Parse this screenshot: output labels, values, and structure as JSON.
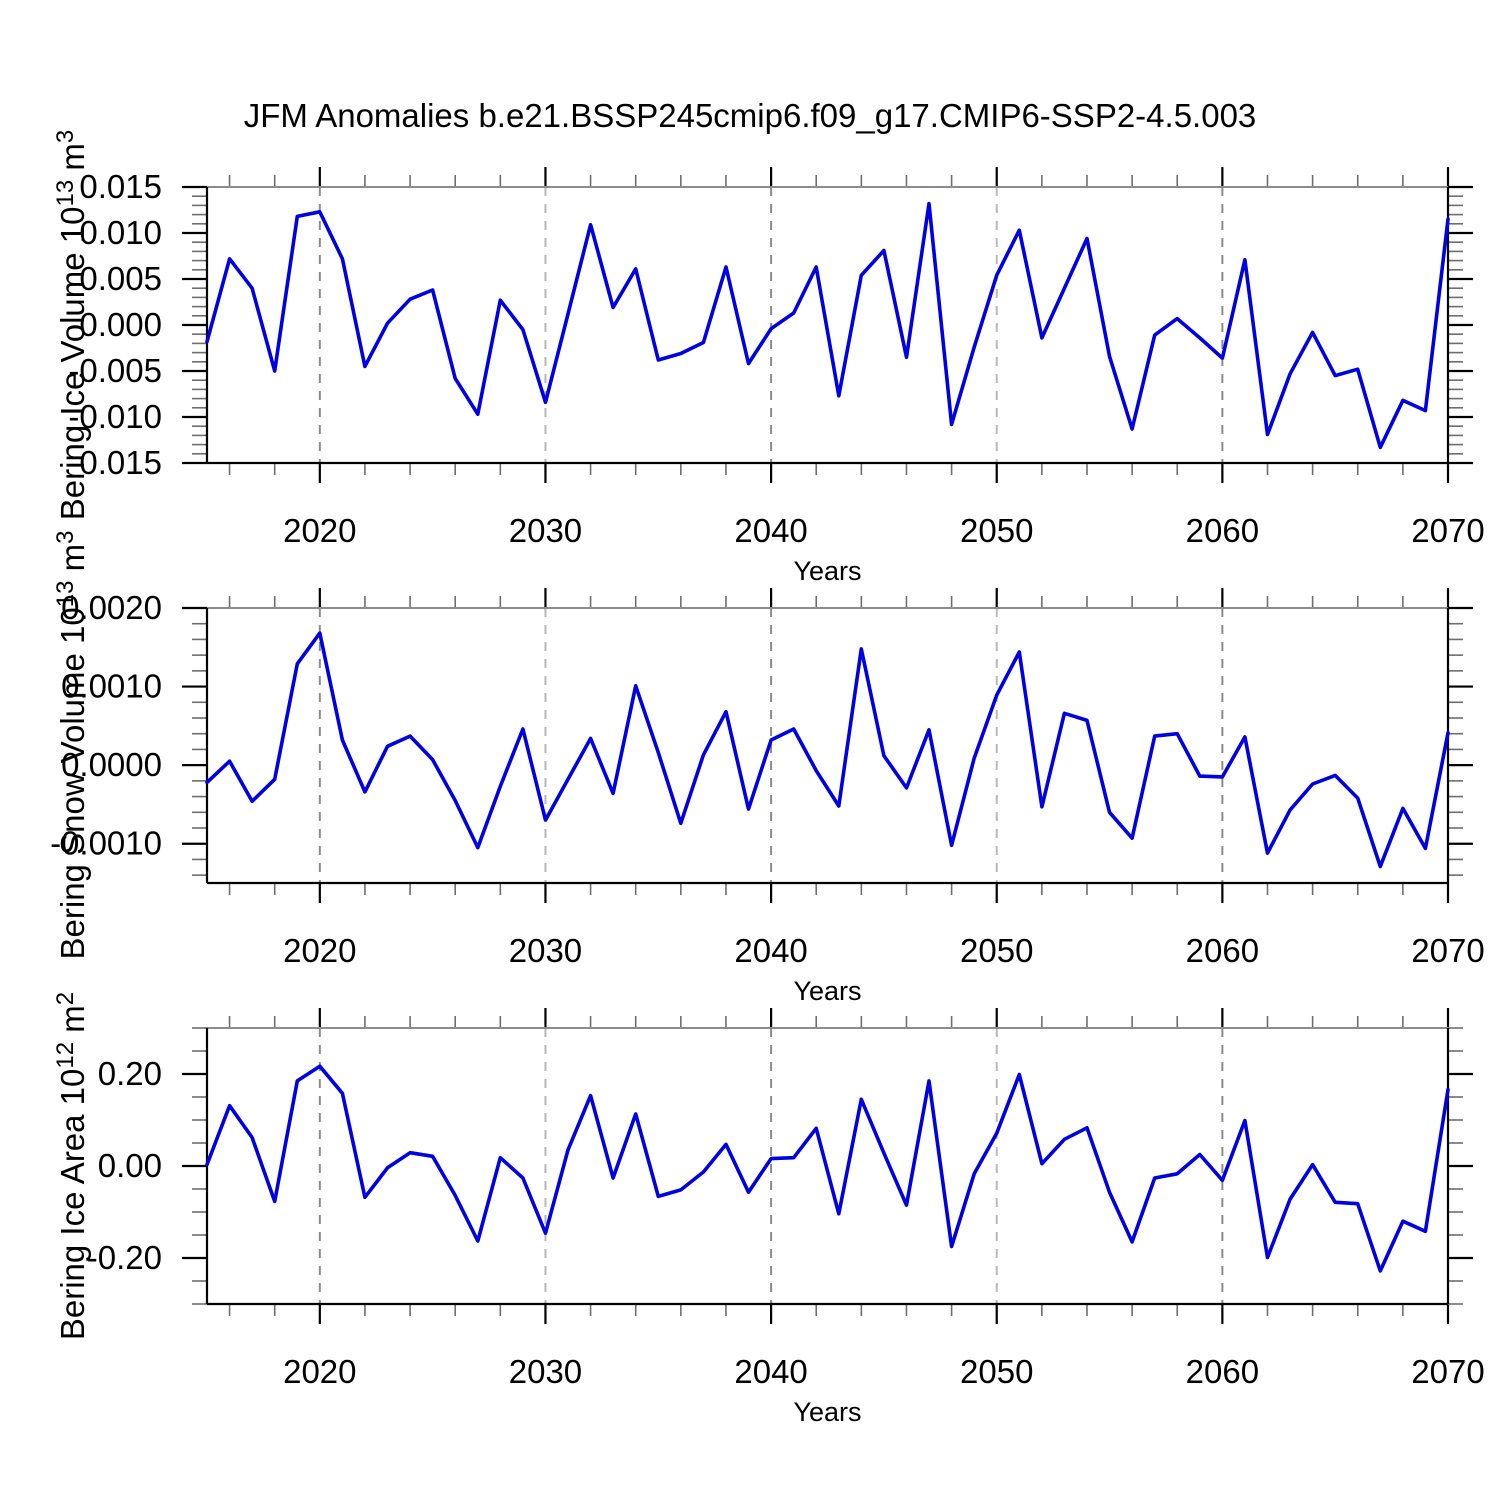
{
  "page": {
    "title": "JFM Anomalies b.e21.BSSP245cmip6.f09_g17.CMIP6-SSP2-4.5.003"
  },
  "colors": {
    "line": "#0000e6",
    "grid_dark": "#8c8c8c",
    "grid_light": "#b8b8b8",
    "border_top": "#8c8c8c",
    "border": "#000000",
    "tick_major": "#000000",
    "tick_minor": "#6e6e6e"
  },
  "chart_data": [
    {
      "type": "line",
      "name": "bering-ice-volume",
      "ylabel_prefix": "Bering Ice Volume 10",
      "ylabel_sup": "13",
      "ylabel_mid": " m",
      "ylabel_sup2": "3",
      "xlabel": "Years",
      "xlim": [
        2015,
        2070
      ],
      "ylim": [
        -0.015,
        0.015
      ],
      "yticks": [
        0.015,
        0.01,
        0.005,
        0.0,
        -0.005,
        -0.01,
        -0.015
      ],
      "ytick_labels": [
        "0.015",
        "0.010",
        "0.005",
        "0.000",
        "-0.005",
        "-0.010",
        "-0.015"
      ],
      "yticks_minor_step": 0.001,
      "xticks": [
        2020,
        2030,
        2040,
        2050,
        2060,
        2070
      ],
      "xtick_labels": [
        "2020",
        "2030",
        "2040",
        "2050",
        "2060",
        "2070"
      ],
      "grid_years": [
        2020,
        2030,
        2040,
        2050,
        2060
      ],
      "years": [
        2015,
        2016,
        2017,
        2018,
        2019,
        2020,
        2021,
        2022,
        2023,
        2024,
        2025,
        2026,
        2027,
        2028,
        2029,
        2030,
        2031,
        2032,
        2033,
        2034,
        2035,
        2036,
        2037,
        2038,
        2039,
        2040,
        2041,
        2042,
        2043,
        2044,
        2045,
        2046,
        2047,
        2048,
        2049,
        2050,
        2051,
        2052,
        2053,
        2054,
        2055,
        2056,
        2057,
        2058,
        2059,
        2060,
        2061,
        2062,
        2063,
        2064,
        2065,
        2066,
        2067,
        2068,
        2069,
        2070
      ],
      "values": [
        -0.0018,
        0.0072,
        0.004,
        -0.005,
        0.0118,
        0.0123,
        0.0072,
        -0.0045,
        0.0002,
        0.0028,
        0.0038,
        -0.0058,
        -0.0097,
        0.0027,
        -0.0005,
        -0.0084,
        0.0012,
        0.0109,
        0.0019,
        0.0061,
        -0.0038,
        -0.0031,
        -0.0019,
        0.0063,
        -0.0042,
        -0.0004,
        0.0013,
        0.0063,
        -0.0077,
        0.0054,
        0.0081,
        -0.0035,
        0.0132,
        -0.0108,
        -0.0024,
        0.0054,
        0.0103,
        -0.0014,
        0.004,
        0.0094,
        -0.0034,
        -0.0113,
        -0.0011,
        0.0007,
        -0.0014,
        -0.0036,
        0.0071,
        -0.0119,
        -0.0053,
        -0.0008,
        -0.0055,
        -0.0048,
        -0.0133,
        -0.0082,
        -0.0093,
        0.0115
      ]
    },
    {
      "type": "line",
      "name": "bering-snow-volume",
      "ylabel_prefix": "Bering Snow Volume 10",
      "ylabel_sup": "13",
      "ylabel_mid": " m",
      "ylabel_sup2": "3",
      "xlabel": "Years",
      "xlim": [
        2015,
        2070
      ],
      "ylim": [
        -0.0015,
        0.002
      ],
      "yticks": [
        0.002,
        0.001,
        0.0,
        -0.001
      ],
      "ytick_labels": [
        "0.0020",
        "0.0010",
        "0.0000",
        "-0.0010"
      ],
      "yticks_minor_step": 0.0002,
      "xticks": [
        2020,
        2030,
        2040,
        2050,
        2060,
        2070
      ],
      "xtick_labels": [
        "2020",
        "2030",
        "2040",
        "2050",
        "2060",
        "2070"
      ],
      "grid_years": [
        2020,
        2030,
        2040,
        2050,
        2060
      ],
      "years": [
        2015,
        2016,
        2017,
        2018,
        2019,
        2020,
        2021,
        2022,
        2023,
        2024,
        2025,
        2026,
        2027,
        2028,
        2029,
        2030,
        2031,
        2032,
        2033,
        2034,
        2035,
        2036,
        2037,
        2038,
        2039,
        2040,
        2041,
        2042,
        2043,
        2044,
        2045,
        2046,
        2047,
        2048,
        2049,
        2050,
        2051,
        2052,
        2053,
        2054,
        2055,
        2056,
        2057,
        2058,
        2059,
        2060,
        2061,
        2062,
        2063,
        2064,
        2065,
        2066,
        2067,
        2068,
        2069,
        2070
      ],
      "values": [
        -0.00022,
        5e-05,
        -0.00046,
        -0.00018,
        0.00129,
        0.00168,
        0.00032,
        -0.00034,
        0.00024,
        0.00037,
        7e-05,
        -0.00045,
        -0.00105,
        -0.00027,
        0.00046,
        -0.0007,
        -0.00018,
        0.00034,
        -0.00036,
        0.00101,
        0.00016,
        -0.00074,
        0.00013,
        0.00068,
        -0.00056,
        0.00032,
        0.00046,
        -7e-05,
        -0.00052,
        0.00148,
        0.00012,
        -0.00029,
        0.00045,
        -0.00102,
        9e-05,
        0.00089,
        0.00144,
        -0.00053,
        0.00066,
        0.00057,
        -0.0006,
        -0.00093,
        0.00037,
        0.0004,
        -0.00014,
        -0.00015,
        0.00036,
        -0.00112,
        -0.00057,
        -0.00024,
        -0.00013,
        -0.00042,
        -0.00129,
        -0.00055,
        -0.00106,
        0.00041
      ]
    },
    {
      "type": "line",
      "name": "bering-ice-area",
      "ylabel_prefix": "Bering Ice Area 10",
      "ylabel_sup": "12",
      "ylabel_mid": " m",
      "ylabel_sup2": "2",
      "xlabel": "Years",
      "xlim": [
        2015,
        2070
      ],
      "ylim": [
        -0.3,
        0.3
      ],
      "yticks": [
        0.2,
        0.0,
        -0.2
      ],
      "ytick_labels": [
        "0.20",
        "0.00",
        "-0.20"
      ],
      "yticks_minor_step": 0.05,
      "xticks": [
        2020,
        2030,
        2040,
        2050,
        2060,
        2070
      ],
      "xtick_labels": [
        "2020",
        "2030",
        "2040",
        "2050",
        "2060",
        "2070"
      ],
      "grid_years": [
        2020,
        2030,
        2040,
        2050,
        2060
      ],
      "years": [
        2015,
        2016,
        2017,
        2018,
        2019,
        2020,
        2021,
        2022,
        2023,
        2024,
        2025,
        2026,
        2027,
        2028,
        2029,
        2030,
        2031,
        2032,
        2033,
        2034,
        2035,
        2036,
        2037,
        2038,
        2039,
        2040,
        2041,
        2042,
        2043,
        2044,
        2045,
        2046,
        2047,
        2048,
        2049,
        2050,
        2051,
        2052,
        2053,
        2054,
        2055,
        2056,
        2057,
        2058,
        2059,
        2060,
        2061,
        2062,
        2063,
        2064,
        2065,
        2066,
        2067,
        2068,
        2069,
        2070
      ],
      "values": [
        0.003,
        0.131,
        0.062,
        -0.077,
        0.185,
        0.217,
        0.158,
        -0.068,
        -0.004,
        0.029,
        0.021,
        -0.064,
        -0.163,
        0.018,
        -0.026,
        -0.146,
        0.035,
        0.153,
        -0.026,
        0.113,
        -0.066,
        -0.052,
        -0.013,
        0.047,
        -0.057,
        0.016,
        0.018,
        0.082,
        -0.104,
        0.145,
        0.028,
        -0.085,
        0.185,
        -0.175,
        -0.017,
        0.071,
        0.199,
        0.005,
        0.058,
        0.083,
        -0.057,
        -0.165,
        -0.026,
        -0.017,
        0.025,
        -0.031,
        0.099,
        -0.199,
        -0.072,
        0.003,
        -0.079,
        -0.082,
        -0.228,
        -0.12,
        -0.142,
        0.166
      ]
    }
  ]
}
